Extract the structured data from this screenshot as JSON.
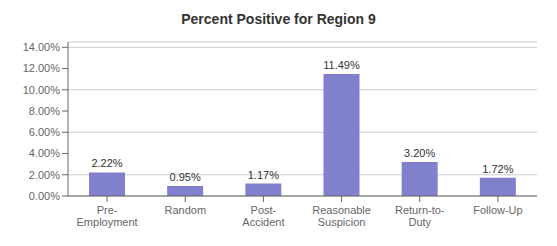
{
  "chart_data": {
    "type": "bar",
    "title": "Percent Positive for Region 9",
    "categories": [
      "Pre-\nEmployment",
      "Random",
      "Post-\nAccident",
      "Reasonable\nSuspicion",
      "Return-to-\nDuty",
      "Follow-Up"
    ],
    "values": [
      2.22,
      0.95,
      1.17,
      11.49,
      3.2,
      1.72
    ],
    "value_labels": [
      "2.22%",
      "0.95%",
      "1.17%",
      "11.49%",
      "3.20%",
      "1.72%"
    ],
    "data_labels": true,
    "color": "#8080cc",
    "ylim": [
      0,
      14.5
    ],
    "yticks": [
      {
        "value": 0,
        "label": "0.00%"
      },
      {
        "value": 2.0,
        "label": "2.00%"
      },
      {
        "value": 4.0,
        "label": "4.00%"
      },
      {
        "value": 6.0,
        "label": "6.00%"
      },
      {
        "value": 8.0,
        "label": "8.00%"
      },
      {
        "value": 10.0,
        "label": "10.00%"
      },
      {
        "value": 12.0,
        "label": "12.00%"
      },
      {
        "value": 14.0,
        "label": "14.00%"
      }
    ],
    "grid": true
  }
}
